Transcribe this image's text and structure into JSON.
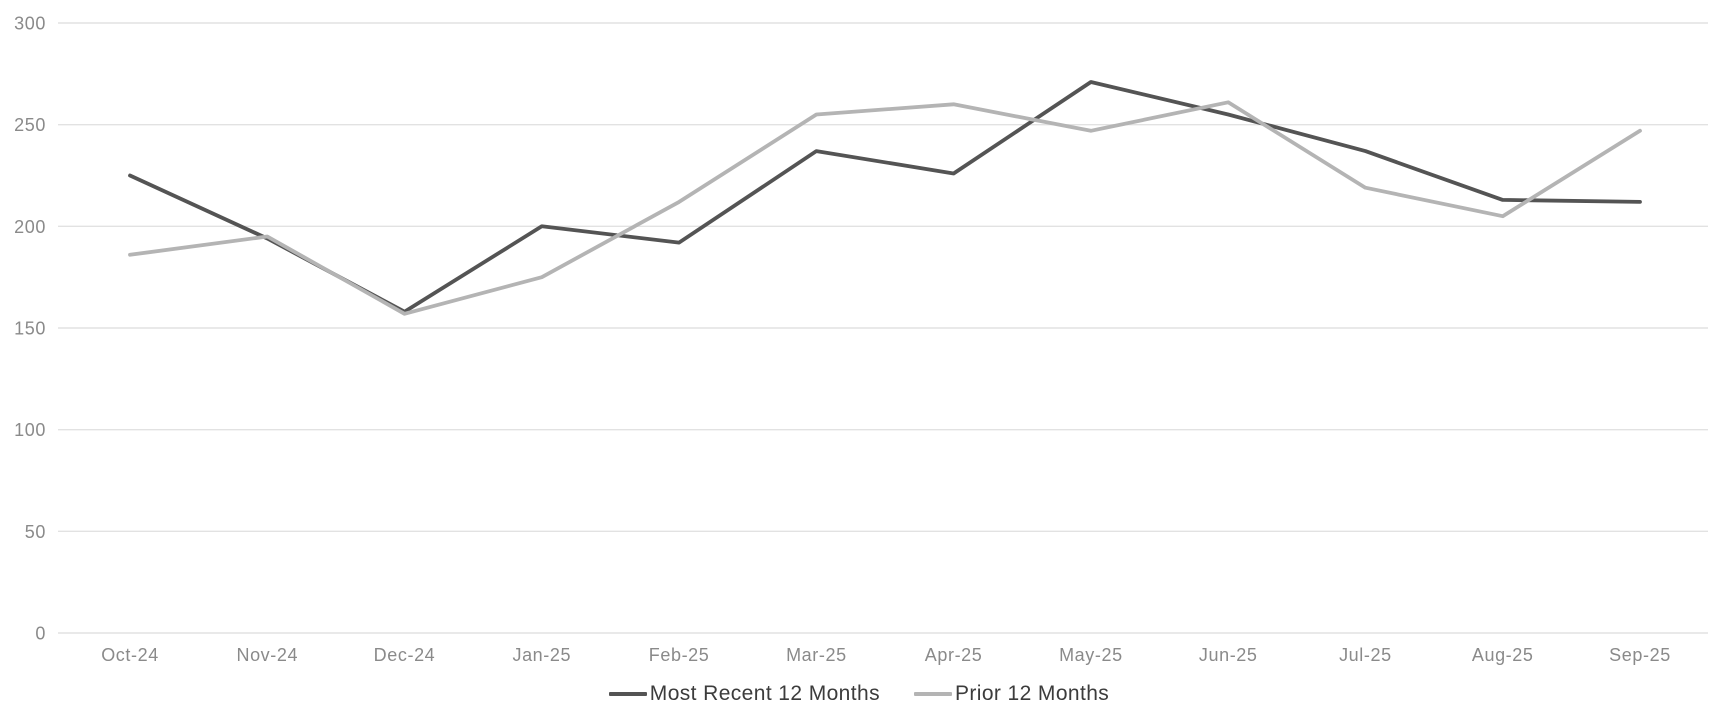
{
  "chart_data": {
    "type": "line",
    "title": "",
    "xlabel": "",
    "ylabel": "",
    "categories": [
      "Oct-24",
      "Nov-24",
      "Dec-24",
      "Jan-25",
      "Feb-25",
      "Mar-25",
      "Apr-25",
      "May-25",
      "Jun-25",
      "Jul-25",
      "Aug-25",
      "Sep-25"
    ],
    "series": [
      {
        "id": "most-recent-12-months",
        "name": "Most Recent 12 Months",
        "color": "#545454",
        "values": [
          225,
          194,
          158,
          200,
          192,
          237,
          226,
          271,
          255,
          237,
          213,
          212
        ]
      },
      {
        "id": "prior-12-months",
        "name": "Prior 12 Months",
        "color": "#b4b4b4",
        "values": [
          186,
          195,
          157,
          175,
          212,
          255,
          260,
          247,
          261,
          219,
          205,
          247
        ]
      }
    ],
    "ylim": [
      0,
      300
    ],
    "y_ticks": [
      0,
      50,
      100,
      150,
      200,
      250,
      300
    ],
    "grid": "horizontal",
    "legend_position": "bottom-center",
    "style": {
      "background": "#ffffff",
      "gridline_color": "#e2e2e2",
      "tick_label_color": "#8a8a8a",
      "legend_text_color": "#3c3c3c"
    }
  }
}
